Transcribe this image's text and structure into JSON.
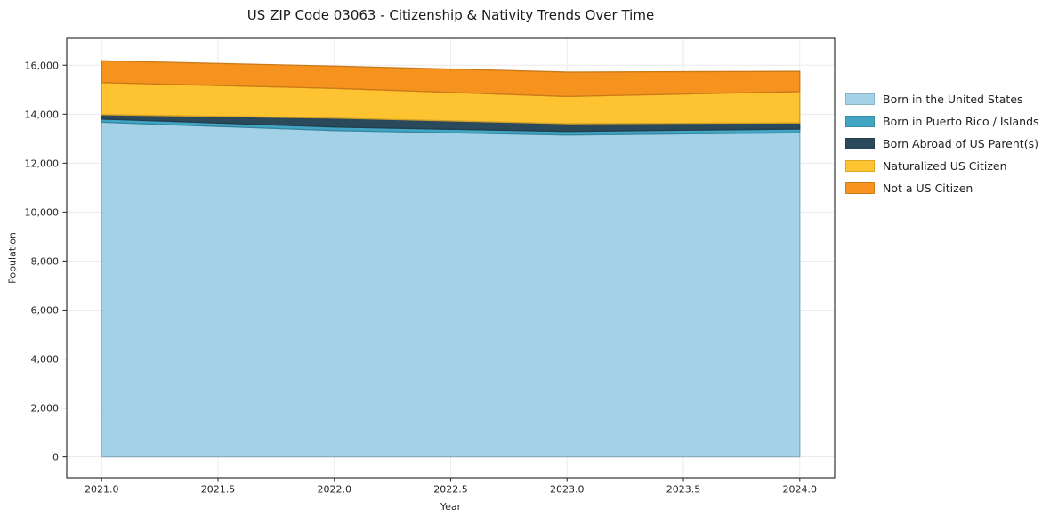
{
  "header": {
    "title": "US ZIP Code 03063 - Citizenship & Nativity Trends Over Time"
  },
  "chart_data": {
    "type": "area",
    "stacked": true,
    "title": "US ZIP Code 03063 - Citizenship & Nativity Trends Over Time",
    "xlabel": "Year",
    "ylabel": "Population",
    "x": [
      2021,
      2022,
      2023,
      2024
    ],
    "series": [
      {
        "name": "Born in the United States",
        "color": "#a3d2e8",
        "values": [
          13670,
          13330,
          13150,
          13240
        ]
      },
      {
        "name": "Born in Puerto Rico / Islands",
        "color": "#41a5c3",
        "values": [
          130,
          145,
          145,
          155
        ]
      },
      {
        "name": "Born Abroad of US Parent(s)",
        "color": "#2a4a5c",
        "values": [
          180,
          365,
          315,
          245
        ]
      },
      {
        "name": "Naturalized US Citizen",
        "color": "#fdc330",
        "values": [
          1310,
          1215,
          1115,
          1285
        ]
      },
      {
        "name": "Not a US Citizen",
        "color": "#f6921e",
        "values": [
          890,
          910,
          995,
          825
        ]
      }
    ],
    "stacked_totals": [
      16180,
      15965,
      15720,
      15750
    ],
    "xticks": [
      2021.0,
      2021.5,
      2022.0,
      2022.5,
      2023.0,
      2023.5,
      2024.0
    ],
    "yticks": [
      0,
      2000,
      4000,
      6000,
      8000,
      10000,
      12000,
      14000,
      16000
    ],
    "xlim": [
      2020.85,
      2024.15
    ],
    "ylim": [
      -850,
      17100
    ],
    "grid": true,
    "legend_position": "right-outside",
    "colors": {
      "grid": "#eaeaea",
      "spine": "#333333",
      "tick_text": "#262626",
      "background": "#ffffff"
    }
  }
}
